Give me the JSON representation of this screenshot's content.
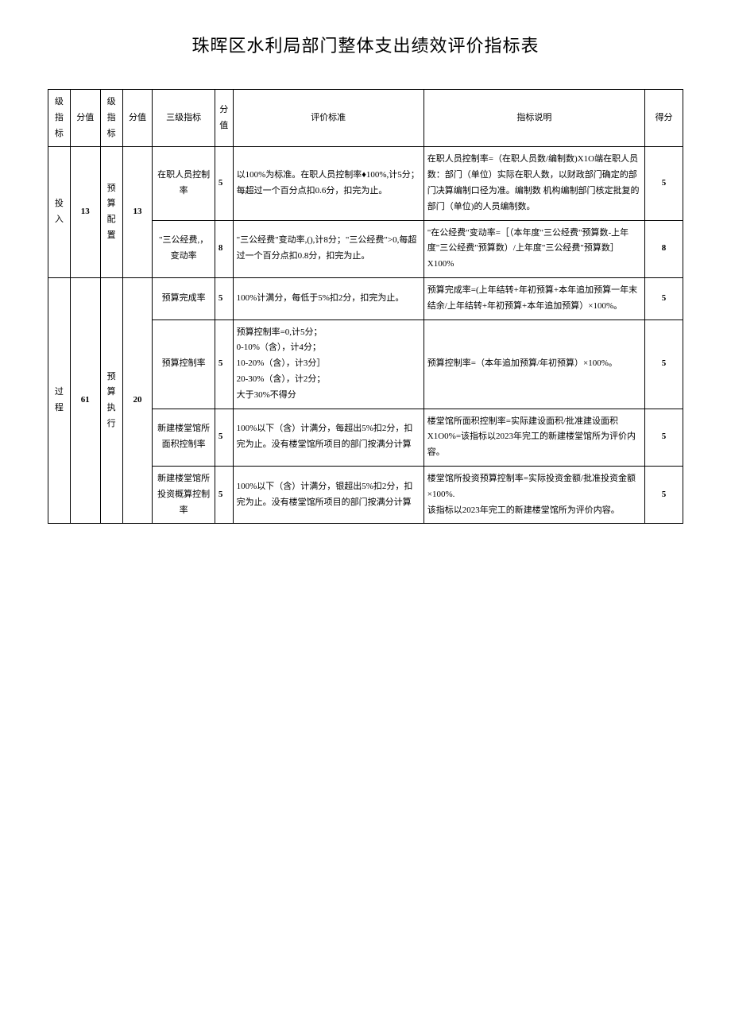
{
  "title": "珠晖区水利局部门整体支出绩效评价指标表",
  "header": {
    "col1": "级指标",
    "col2": "分值",
    "col3": "级指标",
    "col4": "分值",
    "col5": "三级指标",
    "col6": "分值",
    "col7": "评价标准",
    "col8": "指标说明",
    "col9": "得分"
  },
  "row1_l1": "投入",
  "row1_l1v": "13",
  "row1_l2": "预算配置",
  "row1_l2v": "13",
  "row1_l3": "在职人员控制率",
  "row1_l3v": "5",
  "row1_std": "以100%为标准。在职人员控制率♦100%,计5分；每超过一个百分点扣0.6分，扣完为止。",
  "row1_desc": "在职人员控制率=（在职人员数/编制数)X1O端在职人员数：部门（单位）实际在职人数，以财政部门确定的部门决算编制口径为准。编制数 机构编制部门核定批复的部门（单位)的人员编制数。",
  "row1_score": "5",
  "row2_l3": "\"三公经费,，变动率",
  "row2_l3v": "8",
  "row2_std": "\"三公经费\"变动率,(),计8分；\"三公经费\">0,每超过一个百分点扣0.8分，扣完为止。",
  "row2_desc": "\"在公经费\"变动率=［（本年度\"三公经费\"预算数-上年度\"三公经费\"预算数）/上年度\"三公经费\"预算数］X100%",
  "row2_score": "8",
  "row3_l1": "过程",
  "row3_l1v": "61",
  "row3_l2": "预算执行",
  "row3_l2v": "20",
  "row3_l3": "预算完成率",
  "row3_l3v": "5",
  "row3_std": "100%计满分，每低于5%扣2分，扣完为止。",
  "row3_desc": "预算完成率=(上年结转+年初预算+本年追加预算一年末结余/上年结转+年初预算+本年追加预算）×100%。",
  "row3_score": "5",
  "row4_l3": "预算控制率",
  "row4_l3v": "5",
  "row4_std": "预算控制率=0,计5分；\n0-10%（含），计4分；\n10-20%（含），计3分］\n20-30%（含），计2分；\n大于30%不得分",
  "row4_desc": "预算控制率=（本年追加预算/年初预算）×100%。",
  "row4_score": "5",
  "row5_l3": "新建楼堂馆所面积控制率",
  "row5_l3v": "5",
  "row5_std": "100%以下（含）计满分，每超出5%扣2分，扣完为止。没有楼堂馆所项目的部门按满分计算",
  "row5_desc": "楼堂馆所面积控制率=实际建设面积/批准建设面积 X1O0%=该指标以2023年完工的新建楼堂馆所为评价内容。",
  "row5_score": "5",
  "row6_l3": "新建楼堂馆所投资概算控制率",
  "row6_l3v": "5",
  "row6_std": "100%以下（含）计满分，银超出5%扣2分，扣完为止。没有楼堂馆所项目的部门按满分计算",
  "row6_desc": "楼堂馆所投资预算控制率=实际投资金额/批准投资金额×100%.\n该指标以2023年完工的新建楼堂馆所为评价内容。",
  "row6_score": "5"
}
